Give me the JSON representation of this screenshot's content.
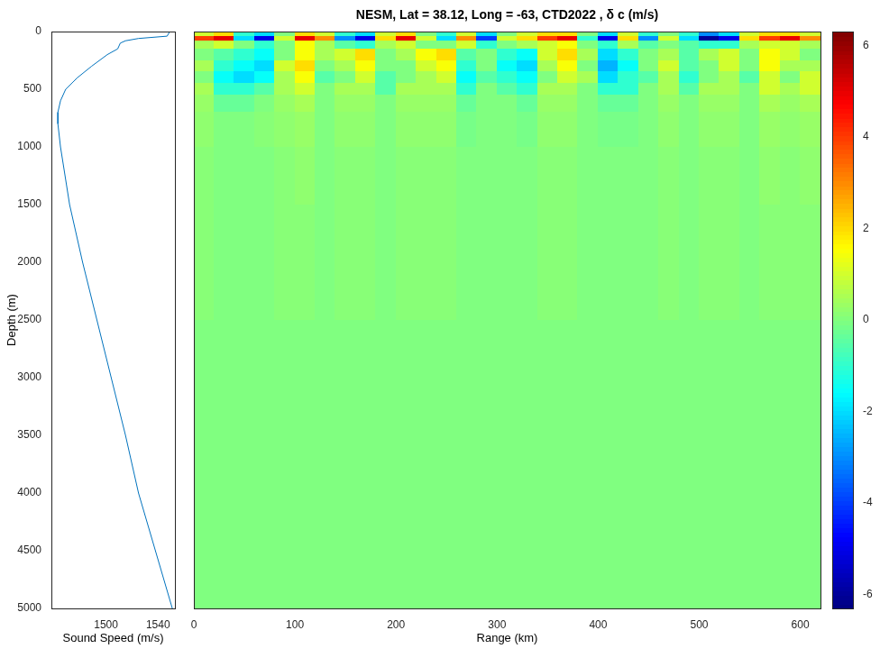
{
  "chart_data": [
    {
      "type": "line",
      "x_label": "Sound Speed (m/s)",
      "y_label": "Depth (m)",
      "color": "#0072bd",
      "x": [
        1549,
        1547,
        1525,
        1515,
        1511,
        1509,
        1501,
        1489,
        1478,
        1469,
        1465,
        1463,
        1463,
        1465,
        1472,
        1482,
        1493,
        1504,
        1515,
        1525,
        1538,
        1551
      ],
      "y": [
        0,
        40,
        60,
        80,
        100,
        150,
        200,
        300,
        400,
        500,
        600,
        700,
        800,
        1000,
        1500,
        2000,
        2500,
        3000,
        3500,
        4000,
        4500,
        5000
      ],
      "xlim": [
        1458,
        1553
      ],
      "xticks": [
        1500,
        1540
      ],
      "ylim": [
        0,
        5000
      ],
      "yticks": [
        0,
        500,
        1000,
        1500,
        2000,
        2500,
        3000,
        3500,
        4000,
        4500,
        5000
      ],
      "grid": false
    },
    {
      "type": "heatmap",
      "title": "NESM, Lat = 38.12, Long = -63, CTD2022 , δ c (m/s)",
      "x_label": "Range (km)",
      "xlim": [
        0,
        620
      ],
      "xticks": [
        0,
        100,
        200,
        300,
        400,
        500,
        600
      ],
      "ylim": [
        0,
        5000
      ],
      "tick_labels": "x",
      "grid": false,
      "x_edges": [
        0,
        20,
        40,
        60,
        80,
        100,
        120,
        140,
        160,
        180,
        200,
        220,
        240,
        260,
        280,
        300,
        320,
        340,
        360,
        380,
        400,
        420,
        440,
        460,
        480,
        500,
        520,
        540,
        560,
        580,
        600,
        620
      ],
      "y_edges": [
        0,
        40,
        80,
        150,
        250,
        350,
        450,
        550,
        700,
        1000,
        1500,
        2500,
        5000
      ],
      "cells": [
        [
          1,
          2,
          -1,
          -2,
          0,
          2,
          1,
          -1,
          -2,
          1,
          2,
          0,
          -1,
          1,
          -2,
          0,
          1,
          2,
          2,
          0,
          -2,
          1,
          -1,
          0,
          -1,
          -3,
          -2,
          1,
          2,
          2,
          1
        ],
        [
          4,
          5,
          -2,
          -5,
          1,
          5,
          3,
          -3,
          -5,
          2,
          5,
          1,
          -2,
          3,
          -4,
          1,
          2,
          4,
          5,
          -1,
          -5,
          2,
          -3,
          1,
          -2,
          -6,
          -5,
          2,
          4,
          5,
          3
        ],
        [
          0.5,
          1,
          0,
          -1,
          0,
          1.5,
          0.5,
          -0.5,
          -1,
          0.5,
          1,
          0,
          0,
          1,
          -1,
          0,
          0.5,
          1,
          1.5,
          0,
          -1,
          0.5,
          -0.5,
          0,
          -0.5,
          -1,
          -1,
          0.5,
          1,
          1,
          0.5
        ],
        [
          0,
          -0.5,
          -1,
          -1.5,
          0,
          1.5,
          0.5,
          1,
          2,
          0,
          0.5,
          1.5,
          2,
          -0.5,
          0,
          -1,
          -1.5,
          1,
          2,
          0.5,
          -2,
          -1,
          0,
          0.5,
          -0.5,
          0.5,
          1,
          0,
          1.5,
          1,
          0
        ],
        [
          0.5,
          -1,
          -1.5,
          -2,
          1,
          2,
          0,
          0.5,
          1.5,
          0,
          0,
          1,
          1.5,
          -1,
          0,
          -1.5,
          -2,
          0.5,
          1.5,
          0,
          -2.5,
          -1.5,
          0,
          1,
          -0.5,
          0,
          1,
          0,
          1.5,
          0.5,
          0.5
        ],
        [
          0,
          -1.5,
          -2,
          -1.5,
          0.5,
          1.5,
          -0.5,
          0,
          1,
          -0.5,
          0,
          0.5,
          1,
          -1.5,
          -0.5,
          -1,
          -1.5,
          0,
          1,
          0.5,
          -2,
          -1,
          -0.5,
          0.5,
          -1,
          0,
          0.5,
          -0.5,
          1,
          0,
          1
        ],
        [
          0.5,
          -1,
          -1,
          -0.5,
          0.5,
          1,
          0,
          0.5,
          0.5,
          -0.5,
          0.5,
          0.5,
          0.5,
          -1,
          0,
          -0.5,
          -1,
          0.5,
          0.5,
          0,
          -1,
          -1,
          0,
          0.5,
          -0.5,
          0.5,
          0.5,
          0,
          1,
          0.5,
          1
        ],
        [
          0.3,
          -0.3,
          -0.3,
          0,
          0.3,
          0.5,
          0,
          0.3,
          0.3,
          0,
          0.3,
          0.3,
          0.3,
          -0.3,
          0,
          0,
          -0.3,
          0.3,
          0.3,
          0,
          -0.3,
          -0.3,
          0,
          0.3,
          0,
          0.3,
          0.3,
          0,
          0.5,
          0.3,
          0.5
        ],
        [
          0.2,
          0,
          0,
          0.1,
          0.2,
          0.3,
          0,
          0.2,
          0.2,
          0,
          0.2,
          0.2,
          0.2,
          -0.1,
          0,
          0,
          -0.1,
          0.2,
          0.2,
          0,
          -0.1,
          -0.1,
          0,
          0.2,
          0,
          0.2,
          0.2,
          0,
          0.3,
          0.2,
          0.3
        ],
        [
          0.1,
          0,
          0,
          0,
          0.1,
          0.2,
          0,
          0.1,
          0.1,
          0,
          0.1,
          0.1,
          0.1,
          0,
          0,
          0,
          0,
          0.1,
          0.1,
          0,
          0,
          0,
          0,
          0.1,
          0,
          0.1,
          0.1,
          0,
          0.2,
          0.1,
          0.2
        ],
        [
          0.1,
          0,
          0,
          0,
          0.1,
          0.1,
          0,
          0.1,
          0.1,
          0,
          0.1,
          0.1,
          0.1,
          0,
          0,
          0,
          0,
          0.1,
          0.1,
          0,
          0,
          0,
          0,
          0.1,
          0,
          0.1,
          0.1,
          0,
          0.1,
          0.1,
          0.1
        ],
        [
          0,
          0,
          0,
          0,
          0,
          0,
          0,
          0,
          0,
          0,
          0,
          0,
          0,
          0,
          0,
          0,
          0,
          0,
          0,
          0,
          0,
          0,
          0,
          0,
          0,
          0,
          0,
          0,
          0,
          0,
          0
        ]
      ],
      "colorbar": {
        "range": [
          -6.3,
          6.3
        ],
        "ticks": [
          -6,
          -4,
          -2,
          0,
          2,
          4,
          6
        ]
      }
    }
  ]
}
